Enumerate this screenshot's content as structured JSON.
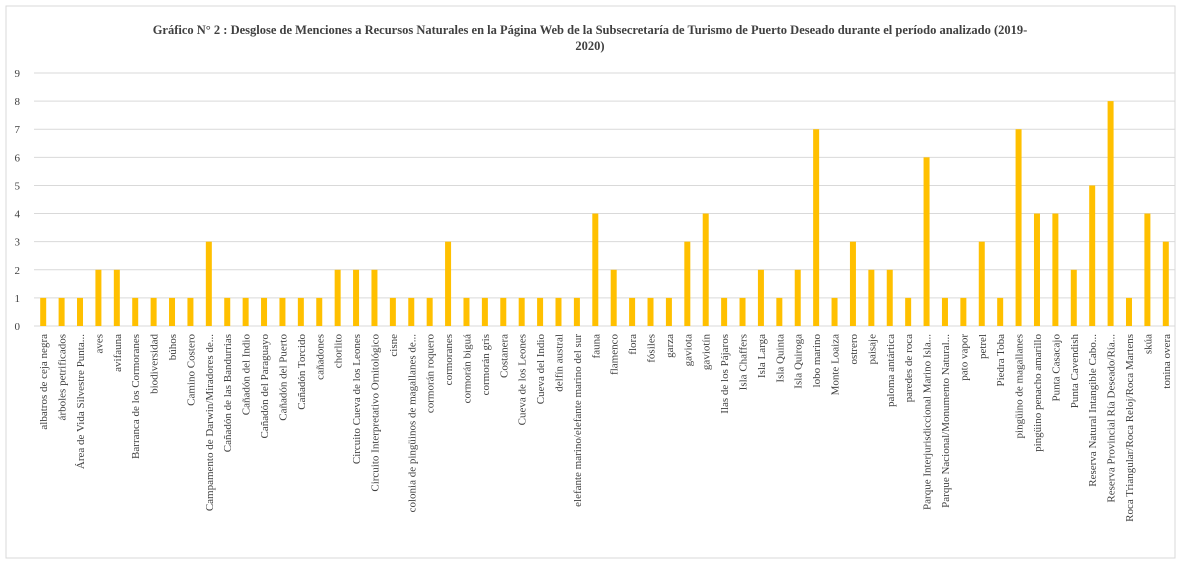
{
  "chart_data": {
    "type": "bar",
    "title": "Gráfico N° 2 : Desglose de Menciones a Recursos Naturales en la Página Web de la Subsecretaría de Turismo de Puerto Deseado durante el período analizado (2019-2020)",
    "categories": [
      "albatros de ceja negra",
      "árboles petrificados",
      "Área de Vida Silvestre Punta...",
      "aves",
      "avifauna",
      "Barranca de los Cormoranes",
      "biodiversidad",
      "búhos",
      "Camino Costero",
      "Campamento de Darwin/Miradores de...",
      "Cañadón de las Bandurrias",
      "Cañadón del Indio",
      "Cañadón del Paraguayo",
      "Cañadón del Puerto",
      "Cañadón Torcido",
      "cañadones",
      "chorlito",
      "Circuito Cueva de los Leones",
      "Circuito Interpretativo Ornitológico",
      "cisne",
      "colonia de pingüinos de magallanes de...",
      "cormorán roquero",
      "cormoranes",
      "cormorán biguá",
      "cormorán gris",
      "Costanera",
      "Cueva de los Leones",
      "Cueva del Indio",
      "delfín austral",
      "elefante marino/elefante marino del sur",
      "fauna",
      "flamenco",
      "flora",
      "fósiles",
      "garza",
      "gaviota",
      "gaviotín",
      "Ilas de los Pájaros",
      "Isla Chaffers",
      "Isla Larga",
      "Isla Quinta",
      "Isla Quiroga",
      "lobo marino",
      "Monte Loaiza",
      "ostrero",
      "paisaje",
      "paloma antártica",
      "paredes de roca",
      "Parque Interjurisdiccional Marino Isla...",
      "Parque Nacional/Monumento Natural...",
      "pato vapor",
      "petrel",
      "Piedra Toba",
      "pingüino de magallanes",
      "pingüino penacho amarillo",
      "Punta Casacajo",
      "Punta Cavendish",
      "Reserva Natural Intangible Cabo...",
      "Reserva Provincial Ría Deseado/Ría...",
      "Roca Triangular/Roca Reloj/Roca Martens",
      "skúa",
      "tonina overa"
    ],
    "values": [
      1,
      1,
      1,
      2,
      2,
      1,
      1,
      1,
      1,
      3,
      1,
      1,
      1,
      1,
      1,
      1,
      2,
      2,
      2,
      1,
      1,
      1,
      3,
      1,
      1,
      1,
      1,
      1,
      1,
      1,
      4,
      2,
      1,
      1,
      1,
      3,
      4,
      1,
      1,
      2,
      1,
      2,
      7,
      1,
      3,
      2,
      2,
      1,
      6,
      1,
      1,
      3,
      1,
      7,
      4,
      4,
      2,
      5,
      8,
      1,
      4,
      3
    ],
    "color": "#ffc000",
    "ylim": [
      0,
      9
    ],
    "yticks": [
      0,
      1,
      2,
      3,
      4,
      5,
      6,
      7,
      8,
      9
    ],
    "grid": true
  }
}
